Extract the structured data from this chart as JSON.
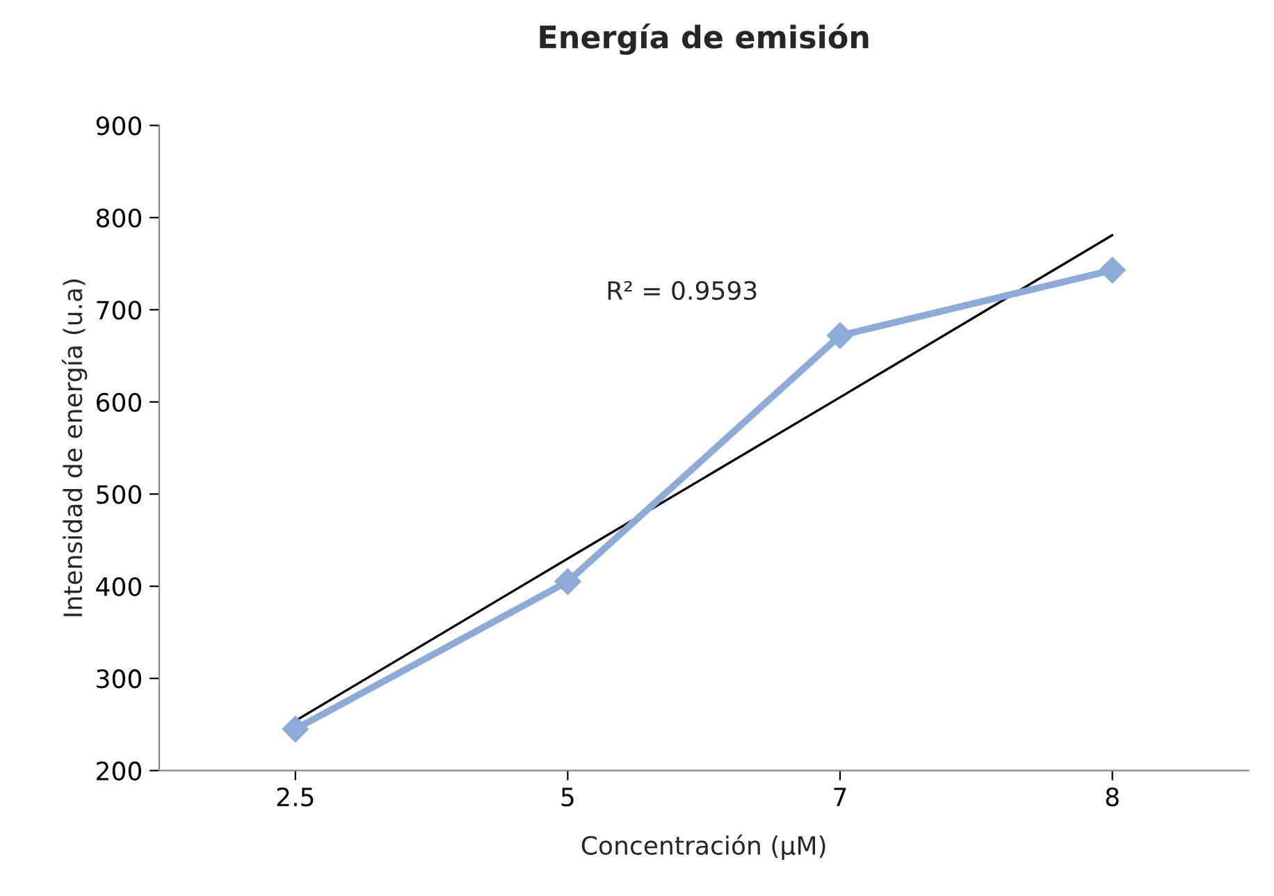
{
  "chart_data": {
    "type": "line",
    "title": "Energía de emisión",
    "xlabel": "Concentración (µM)",
    "ylabel": "Intensidad de energía (u.a)",
    "categories": [
      "2.5",
      "5",
      "7",
      "8"
    ],
    "series": [
      {
        "color": "#8eaad6",
        "values": [
          245,
          405,
          672,
          743
        ],
        "marker": "diamond"
      },
      {
        "type": "line",
        "color": "#000000",
        "values": [
          254,
          430,
          605,
          781
        ],
        "marker": "none"
      }
    ],
    "annotations": [
      "R² = 0.9593"
    ],
    "ylim": [
      200,
      900
    ],
    "yticks": [
      200,
      300,
      400,
      500,
      600,
      700,
      800,
      900
    ],
    "grid": false,
    "legend": false
  }
}
